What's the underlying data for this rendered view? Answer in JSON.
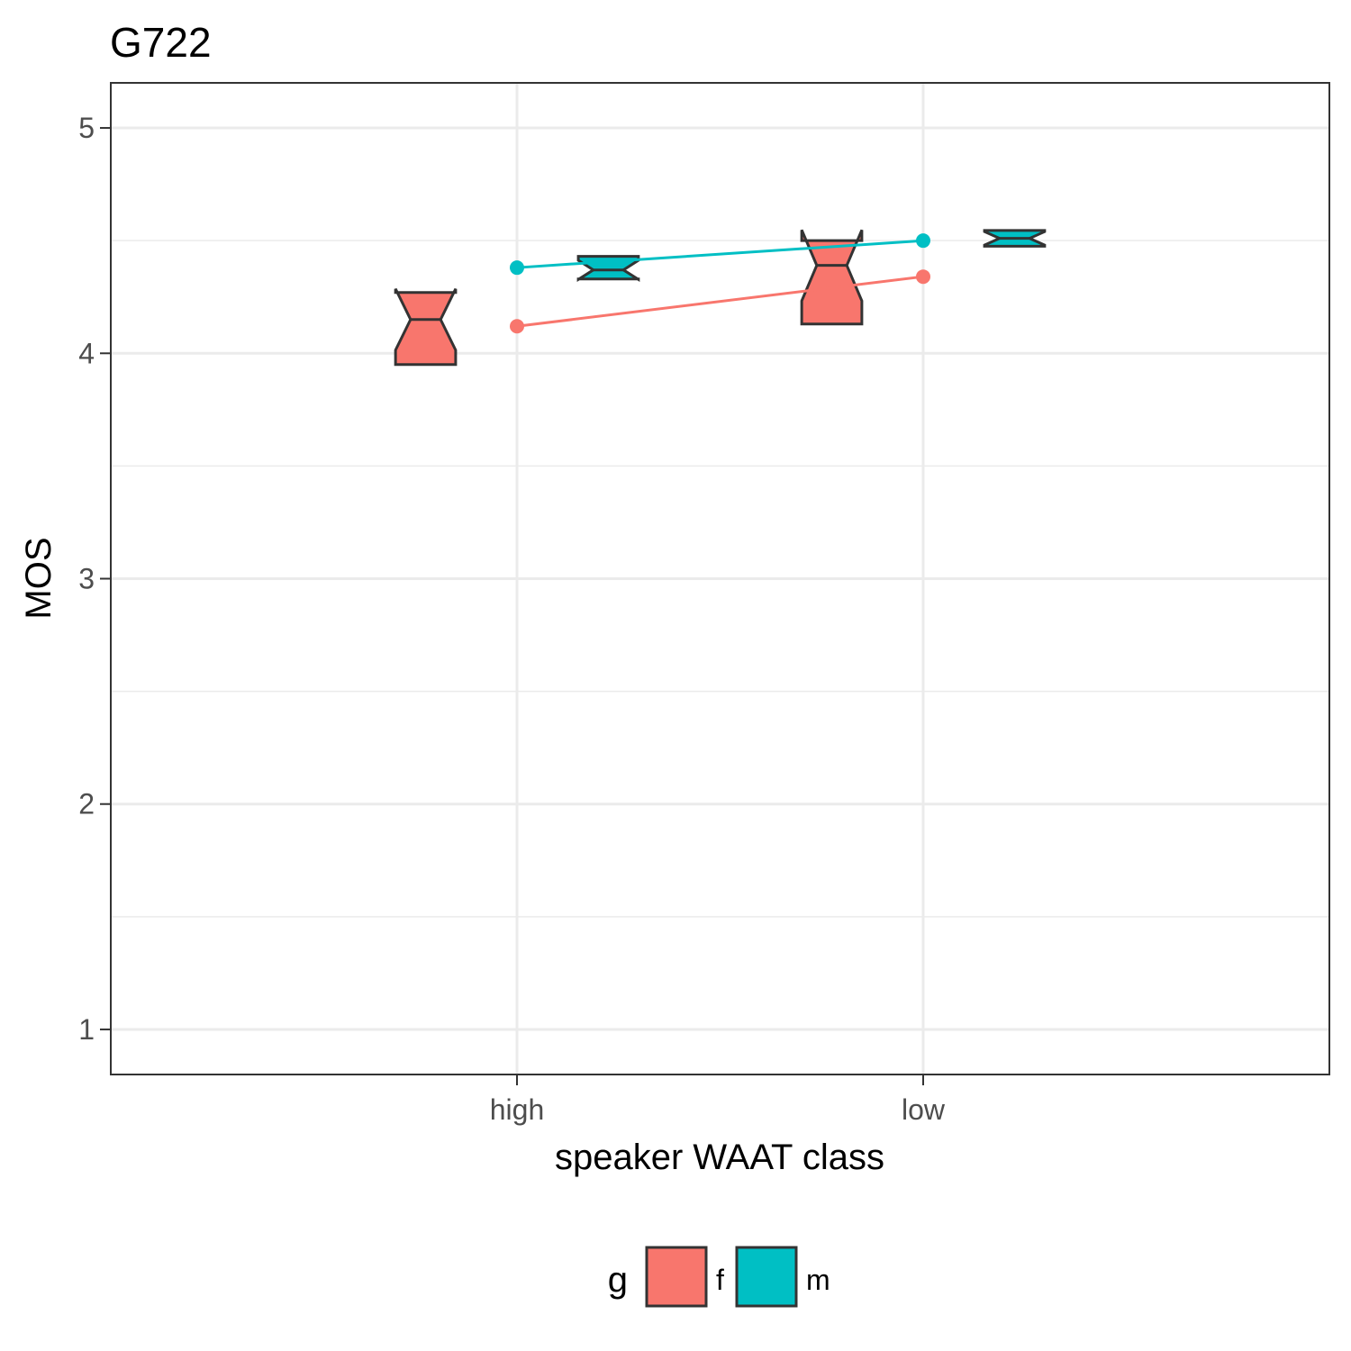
{
  "chart_data": {
    "type": "box",
    "title": "G722",
    "xlabel": "speaker WAAT class",
    "ylabel": "MOS",
    "categories": [
      "high",
      "low"
    ],
    "ylim": [
      0.8,
      5.2
    ],
    "yticks": [
      1,
      2,
      3,
      4,
      5
    ],
    "grid": true,
    "legend_position": "bottom",
    "legend": {
      "title": "g",
      "entries": [
        {
          "label": "f",
          "color": "#F8766D"
        },
        {
          "label": "m",
          "color": "#00BFC4"
        }
      ]
    },
    "series": [
      {
        "name": "f",
        "color": "#F8766D",
        "boxes": [
          {
            "category": "high",
            "q1": 3.95,
            "median": 4.15,
            "q3": 4.27
          },
          {
            "category": "low",
            "q1": 4.13,
            "median": 4.39,
            "q3": 4.5
          }
        ],
        "means": [
          4.12,
          4.34
        ]
      },
      {
        "name": "m",
        "color": "#00BFC4",
        "boxes": [
          {
            "category": "high",
            "q1": 4.33,
            "median": 4.37,
            "q3": 4.43
          },
          {
            "category": "low",
            "q1": 4.475,
            "median": 4.51,
            "q3": 4.545
          }
        ],
        "means": [
          4.38,
          4.5
        ]
      }
    ]
  }
}
